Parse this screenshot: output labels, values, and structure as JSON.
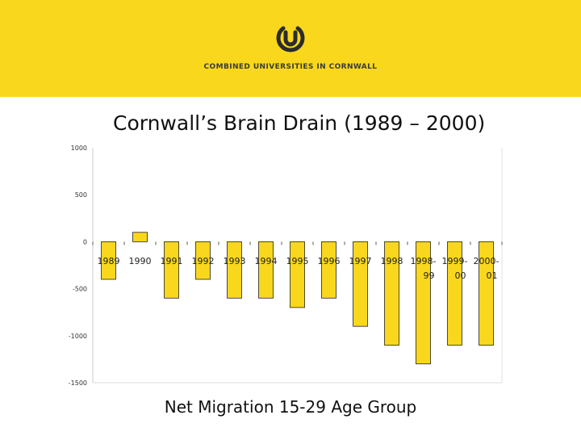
{
  "header": {
    "org_name": "COMBINED UNIVERSITIES IN CORNWALL",
    "brand_color": "#f9d71c",
    "logo_icon": "cuc-logo-icon"
  },
  "chart_title": "Cornwall’s Brain Drain (1989 – 2000)",
  "chart_caption": "Net Migration 15-29 Age Group",
  "chart_data": {
    "type": "bar",
    "title": "Cornwall’s Brain Drain (1989 – 2000)",
    "xlabel": "Net Migration 15-29 Age Group",
    "ylabel": "",
    "categories": [
      {
        "label": "1989",
        "line1": "1989",
        "line2": "",
        "value": -400
      },
      {
        "label": "1990",
        "line1": "1990",
        "line2": "",
        "value": 100
      },
      {
        "label": "1991",
        "line1": "1991",
        "line2": "",
        "value": -600
      },
      {
        "label": "1992",
        "line1": "1992",
        "line2": "",
        "value": -400
      },
      {
        "label": "1993",
        "line1": "1993",
        "line2": "",
        "value": -600
      },
      {
        "label": "1994",
        "line1": "1994",
        "line2": "",
        "value": -600
      },
      {
        "label": "1995",
        "line1": "1995",
        "line2": "",
        "value": -700
      },
      {
        "label": "1996",
        "line1": "1996",
        "line2": "",
        "value": -600
      },
      {
        "label": "1997",
        "line1": "1997",
        "line2": "",
        "value": -900
      },
      {
        "label": "1998",
        "line1": "1998",
        "line2": "",
        "value": -1100
      },
      {
        "label": "1998-99",
        "line1": "1998-",
        "line2": "99",
        "value": -1300
      },
      {
        "label": "1999-00",
        "line1": "1999-",
        "line2": "00",
        "value": -1100
      },
      {
        "label": "2000-01",
        "line1": "2000-",
        "line2": "01",
        "value": -1100
      }
    ],
    "ylim": [
      -1500,
      1000
    ],
    "yticks": [
      "1000",
      "500",
      "0",
      "-500",
      "-1000",
      "-1500"
    ],
    "bar_color": "#f9d71c",
    "bar_outline_color": "#222222",
    "grid": false,
    "legend": "none"
  }
}
